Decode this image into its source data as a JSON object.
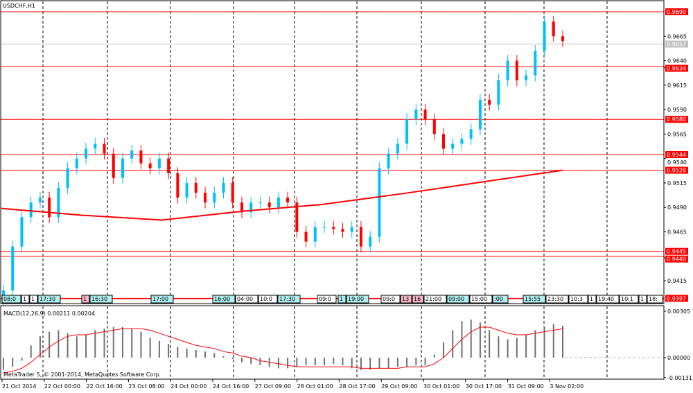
{
  "chart_data": {
    "type": "candlestick",
    "title": "USDCHF,H1",
    "watermark": "MetaTrader 5, © 2001-2014, MetaQuotes Software Corp.",
    "price_axis": {
      "ylim": [
        0.939,
        0.97
      ],
      "ticks": [
        "0.9665",
        "0.9640",
        "0.9615",
        "0.9590",
        "0.9565",
        "0.9540",
        "0.9515",
        "0.9490",
        "0.9465",
        "0.9415"
      ]
    },
    "x_ticks": [
      "21 Oct 2014",
      "22 Oct 00:00",
      "22 Oct 16:00",
      "23 Oct 08:00",
      "24 Oct 00:00",
      "24 Oct 16:00",
      "27 Oct 09:00",
      "28 Oct 01:00",
      "28 Oct 17:00",
      "29 Oct 09:00",
      "30 Oct 01:00",
      "30 Oct 17:00",
      "31 Oct 09:00",
      "3 Nov 02:00"
    ],
    "closes": [
      0.9405,
      0.945,
      0.948,
      0.9495,
      0.95,
      0.948,
      0.951,
      0.953,
      0.954,
      0.955,
      0.9555,
      0.9545,
      0.952,
      0.954,
      0.9548,
      0.9535,
      0.953,
      0.954,
      0.9525,
      0.95,
      0.9515,
      0.9505,
      0.9495,
      0.9505,
      0.9515,
      0.9495,
      0.9485,
      0.9495,
      0.9495,
      0.949,
      0.95,
      0.9495,
      0.9465,
      0.9455,
      0.947,
      0.947,
      0.9468,
      0.9465,
      0.947,
      0.945,
      0.946,
      0.953,
      0.9545,
      0.9555,
      0.958,
      0.959,
      0.958,
      0.9565,
      0.955,
      0.9555,
      0.956,
      0.957,
      0.96,
      0.9595,
      0.962,
      0.964,
      0.962,
      0.9625,
      0.965,
      0.968,
      0.9665,
      0.966
    ],
    "moving_average": [
      0.9489,
      0.9482,
      0.9477,
      0.9486,
      0.9493,
      0.9504,
      0.9516,
      0.9528
    ],
    "levels": [
      {
        "value": "0.9690",
        "color": "#ff0000"
      },
      {
        "value": "0.9634",
        "color": "#ff0000"
      },
      {
        "value": "0.9580",
        "color": "#ff0000"
      },
      {
        "value": "0.9544",
        "color": "#ff0000"
      },
      {
        "value": "0.9528",
        "color": "#ff0000"
      },
      {
        "value": "0.9445",
        "color": "#ff0000"
      },
      {
        "value": "0.9440",
        "color": "#ff0000"
      },
      {
        "value": "0.9397",
        "color": "#ff0000"
      }
    ],
    "bid": {
      "value": "0.9657",
      "color": "#c0c0c0"
    },
    "trade_markers": [
      {
        "label": "08:0",
        "style": "cyan"
      },
      {
        "label": "1",
        "style": "white"
      },
      {
        "label": "1",
        "style": "white"
      },
      {
        "label": "17:30",
        "style": "cyan"
      },
      {
        "label": "1",
        "style": "pink"
      },
      {
        "label": "16:30",
        "style": "cyan"
      },
      {
        "label": "17:00",
        "style": "cyan"
      },
      {
        "label": "16:00",
        "style": "cyan"
      },
      {
        "label": "04:00",
        "style": "white"
      },
      {
        "label": "10:0",
        "style": "white"
      },
      {
        "label": "17:30",
        "style": "cyan"
      },
      {
        "label": "09:0",
        "style": "white"
      },
      {
        "label": "1",
        "style": "cyan"
      },
      {
        "label": "19:00",
        "style": "cyan"
      },
      {
        "label": "09:0",
        "style": "white"
      },
      {
        "label": "13",
        "style": "pink"
      },
      {
        "label": "16",
        "style": "pink"
      },
      {
        "label": "21:00",
        "style": "white"
      },
      {
        "label": "09:00",
        "style": "cyan"
      },
      {
        "label": "15:00",
        "style": "white"
      },
      {
        "label": ":00",
        "style": "cyan"
      },
      {
        "label": "15:55",
        "style": "cyan"
      },
      {
        "label": "23:30",
        "style": "white"
      },
      {
        "label": "10:3",
        "style": "white"
      },
      {
        "label": "1",
        "style": "white"
      },
      {
        "label": "19:40",
        "style": "white"
      },
      {
        "label": "10:1",
        "style": "white"
      },
      {
        "label": "1",
        "style": "white"
      },
      {
        "label": "18:",
        "style": "white"
      }
    ],
    "macd": {
      "label": "MACD(12,26,9) 0.00211 0.00204",
      "ticks": [
        "0.00305",
        "0.00000",
        "-0.00131"
      ],
      "ylim": [
        -0.00131,
        0.00305
      ],
      "histogram": [
        -0.0008,
        -0.0006,
        -0.0002,
        0.0008,
        0.0014,
        0.0017,
        0.0018,
        0.0016,
        0.0014,
        0.0015,
        0.0018,
        0.0019,
        0.002,
        0.002,
        0.0019,
        0.0017,
        0.0013,
        0.0011,
        0.0009,
        0.0007,
        0.0006,
        0.0005,
        0.0004,
        0.0003,
        0.0001,
        -0.0001,
        -0.0003,
        -0.0004,
        -0.0005,
        -0.0006,
        -0.0007,
        -0.0007,
        -0.0006,
        -0.0005,
        -0.0005,
        -0.0005,
        -0.0004,
        -0.0005,
        -0.0007,
        -0.0008,
        -0.0008,
        -0.0007,
        -0.0007,
        -0.0006,
        -0.0006,
        -0.0005,
        -0.0005,
        0.0002,
        0.001,
        0.0018,
        0.0024,
        0.0025,
        0.0023,
        0.0018,
        0.0014,
        0.0012,
        0.0013,
        0.0015,
        0.0018,
        0.002,
        0.0022,
        0.0021
      ],
      "signal": [
        -0.001,
        -0.0009,
        -0.0007,
        -0.0003,
        0.0002,
        0.0007,
        0.0011,
        0.0014,
        0.0015,
        0.0015,
        0.0016,
        0.0017,
        0.0018,
        0.0019,
        0.0019,
        0.0019,
        0.0018,
        0.0016,
        0.0014,
        0.0012,
        0.001,
        0.0008,
        0.0007,
        0.0006,
        0.0004,
        0.0003,
        0.0001,
        0.0,
        -0.0002,
        -0.0003,
        -0.0004,
        -0.0005,
        -0.0006,
        -0.0006,
        -0.0006,
        -0.0006,
        -0.0006,
        -0.0006,
        -0.0006,
        -0.0007,
        -0.0007,
        -0.0007,
        -0.0007,
        -0.0007,
        -0.0006,
        -0.0006,
        -0.0006,
        -0.0004,
        0.0,
        0.0006,
        0.0012,
        0.0017,
        0.002,
        0.002,
        0.0018,
        0.0016,
        0.0015,
        0.0015,
        0.0016,
        0.0017,
        0.0018,
        0.0019
      ]
    },
    "colors": {
      "bull": "#00bfff",
      "bear": "#ff0000",
      "ma": "#ff0000",
      "histogram": "#707070",
      "signal": "#ff0000",
      "grid": "#000000"
    },
    "grid": "vertical dashed"
  }
}
